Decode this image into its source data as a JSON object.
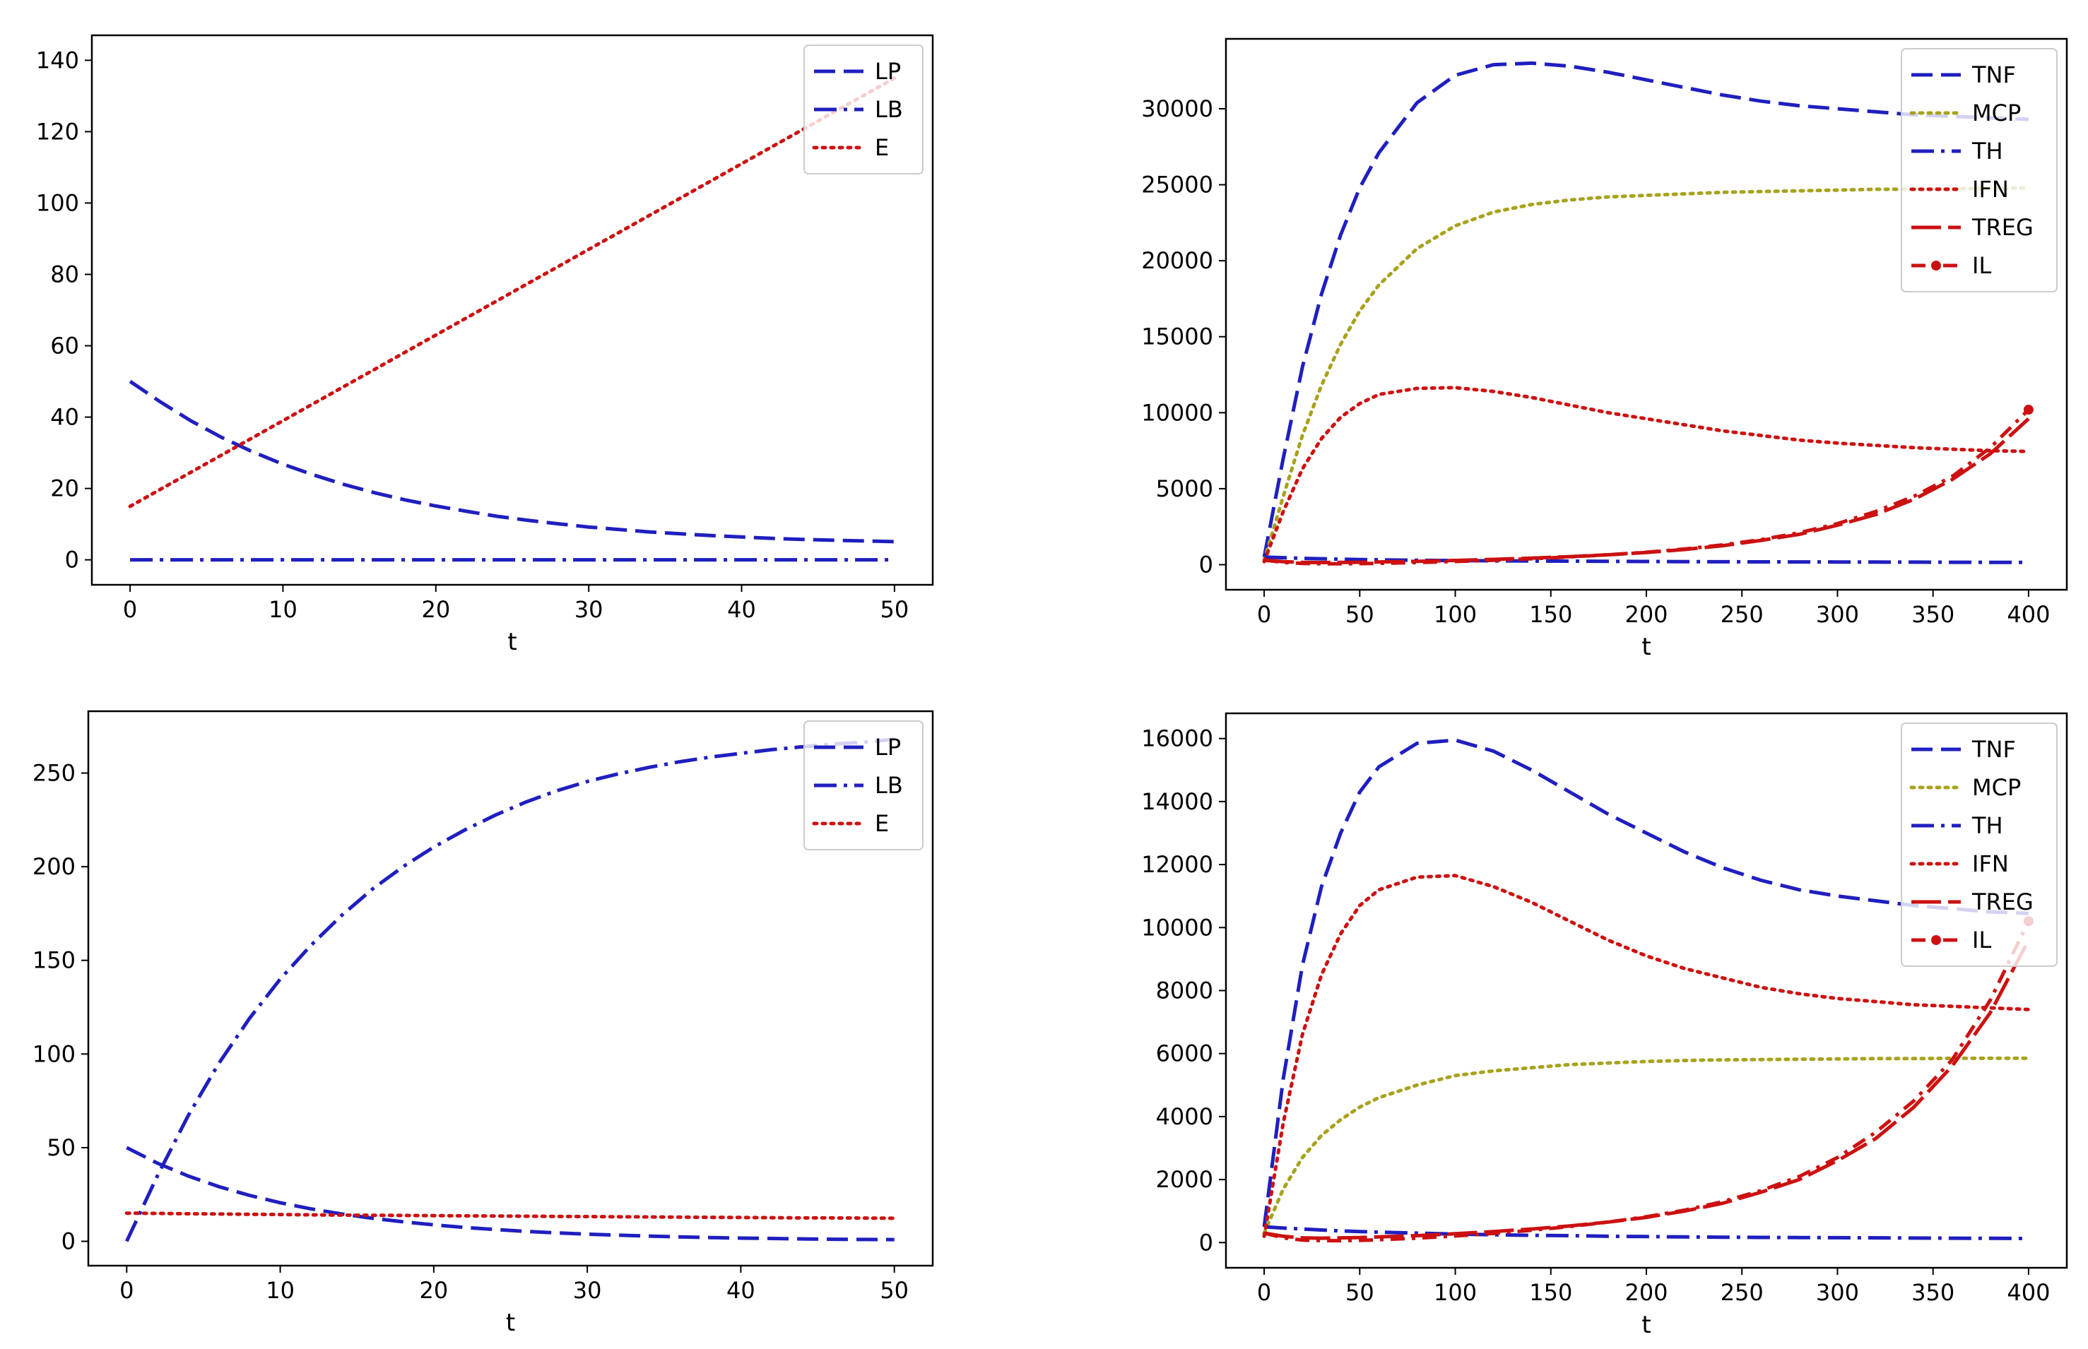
{
  "chart_data": [
    {
      "type": "line",
      "xlabel": "t",
      "ylabel": "",
      "xlim": [
        -2.5,
        52.5
      ],
      "ylim": [
        -7,
        147
      ],
      "xticks": [
        0,
        10,
        20,
        30,
        40,
        50
      ],
      "yticks": [
        0,
        20,
        40,
        60,
        80,
        100,
        120,
        140
      ],
      "x": [
        0,
        2,
        4,
        6,
        8,
        10,
        12,
        14,
        16,
        18,
        20,
        22,
        24,
        26,
        28,
        30,
        32,
        34,
        36,
        38,
        40,
        42,
        44,
        46,
        48,
        50
      ],
      "series": [
        {
          "name": "LP",
          "color": "#1f1fbf",
          "style": "dashed",
          "values": [
            50.0,
            44.2,
            38.9,
            34.3,
            30.3,
            26.8,
            23.8,
            21.1,
            18.8,
            16.8,
            15.1,
            13.6,
            12.2,
            11.1,
            10.1,
            9.2,
            8.5,
            7.8,
            7.3,
            6.8,
            6.4,
            6.0,
            5.7,
            5.5,
            5.3,
            5.1
          ]
        },
        {
          "name": "LB",
          "color": "#1f1fbf",
          "style": "dashdot",
          "values": [
            0,
            0,
            0,
            0,
            0,
            0,
            0,
            0,
            0,
            0,
            0,
            0,
            0,
            0,
            0,
            0,
            0,
            0,
            0,
            0,
            0,
            0,
            0,
            0,
            0,
            0
          ]
        },
        {
          "name": "E",
          "color": "#cc1111",
          "style": "dotted",
          "values": [
            15.0,
            19.8,
            24.6,
            29.4,
            34.2,
            39.0,
            43.8,
            48.6,
            53.4,
            58.2,
            63.0,
            67.8,
            72.6,
            77.4,
            82.2,
            87.0,
            91.8,
            96.6,
            101.4,
            106.2,
            111.0,
            115.8,
            120.6,
            125.4,
            130.2,
            135.0
          ]
        }
      ],
      "legend": {
        "position": "top-right",
        "entries": [
          "LP",
          "LB",
          "E"
        ]
      }
    },
    {
      "type": "line",
      "xlabel": "t",
      "ylabel": "",
      "xlim": [
        -20,
        420
      ],
      "ylim": [
        -1650,
        34600
      ],
      "xticks": [
        0,
        50,
        100,
        150,
        200,
        250,
        300,
        350,
        400
      ],
      "yticks": [
        0,
        5000,
        10000,
        15000,
        20000,
        25000,
        30000
      ],
      "x": [
        0,
        10,
        20,
        30,
        40,
        50,
        60,
        80,
        100,
        120,
        140,
        160,
        180,
        200,
        220,
        240,
        260,
        280,
        300,
        320,
        340,
        360,
        380,
        400
      ],
      "series": [
        {
          "name": "TNF",
          "color": "#1f1fbf",
          "style": "dashed",
          "values": [
            500,
            7000,
            13000,
            17800,
            21700,
            24800,
            27100,
            30400,
            32200,
            32900,
            33000,
            32800,
            32400,
            31900,
            31400,
            30900,
            30500,
            30200,
            30000,
            29800,
            29600,
            29500,
            29400,
            29300
          ]
        },
        {
          "name": "MCP",
          "color": "#a8a21c",
          "style": "dotted",
          "values": [
            300,
            4500,
            8500,
            11800,
            14500,
            16700,
            18400,
            20800,
            22300,
            23200,
            23700,
            24000,
            24200,
            24300,
            24400,
            24500,
            24550,
            24600,
            24650,
            24700,
            24700,
            24750,
            24750,
            24800
          ]
        },
        {
          "name": "TH",
          "color": "#1f1fbf",
          "style": "dashdot",
          "values": [
            500,
            460,
            420,
            390,
            360,
            340,
            320,
            290,
            270,
            250,
            240,
            230,
            220,
            210,
            200,
            190,
            185,
            180,
            175,
            170,
            165,
            160,
            155,
            150
          ]
        },
        {
          "name": "IFN",
          "color": "#cc1111",
          "style": "dotted",
          "values": [
            200,
            3500,
            6300,
            8300,
            9700,
            10600,
            11200,
            11600,
            11650,
            11400,
            11000,
            10500,
            10000,
            9600,
            9200,
            8800,
            8500,
            8200,
            8000,
            7850,
            7700,
            7600,
            7500,
            7450
          ]
        },
        {
          "name": "TREG",
          "color": "#cc1111",
          "style": "longdash",
          "values": [
            300,
            200,
            150,
            140,
            150,
            160,
            180,
            220,
            280,
            350,
            430,
            530,
            650,
            800,
            1000,
            1250,
            1600,
            2000,
            2600,
            3300,
            4300,
            5600,
            7300,
            9600
          ]
        },
        {
          "name": "IL",
          "color": "#cc1111",
          "style": "dashdot-marker",
          "values": [
            300,
            150,
            80,
            60,
            60,
            70,
            90,
            140,
            210,
            290,
            390,
            510,
            650,
            820,
            1030,
            1300,
            1650,
            2100,
            2700,
            3500,
            4500,
            5800,
            7700,
            10200
          ]
        }
      ],
      "legend": {
        "position": "top-right",
        "entries": [
          "TNF",
          "MCP",
          "TH",
          "IFN",
          "TREG",
          "IL"
        ]
      }
    },
    {
      "type": "line",
      "xlabel": "t",
      "ylabel": "",
      "xlim": [
        -2.5,
        52.5
      ],
      "ylim": [
        -13,
        283
      ],
      "xticks": [
        0,
        10,
        20,
        30,
        40,
        50
      ],
      "yticks": [
        0,
        50,
        100,
        150,
        200,
        250
      ],
      "x": [
        0,
        2,
        4,
        6,
        8,
        10,
        12,
        14,
        16,
        18,
        20,
        22,
        24,
        26,
        28,
        30,
        32,
        34,
        36,
        38,
        40,
        42,
        44,
        46,
        48,
        50
      ],
      "series": [
        {
          "name": "LP",
          "color": "#1f1fbf",
          "style": "dashed",
          "values": [
            50.0,
            41.7,
            34.9,
            29.2,
            24.5,
            20.6,
            17.3,
            14.6,
            12.3,
            10.4,
            8.8,
            7.4,
            6.3,
            5.3,
            4.5,
            3.8,
            3.3,
            2.8,
            2.4,
            2.0,
            1.7,
            1.5,
            1.3,
            1.1,
            1.0,
            0.9
          ]
        },
        {
          "name": "LB",
          "color": "#1f1fbf",
          "style": "dashdot",
          "values": [
            0,
            35.0,
            67.0,
            95.0,
            119.0,
            140.0,
            158.0,
            174.0,
            188.0,
            200.0,
            210.5,
            219.5,
            227.5,
            234.5,
            240.5,
            245.5,
            249.5,
            253.0,
            256.0,
            258.5,
            260.5,
            262.5,
            264.0,
            265.5,
            266.5,
            268.0
          ]
        },
        {
          "name": "E",
          "color": "#cc1111",
          "style": "dotted",
          "values": [
            15.0,
            14.9,
            14.7,
            14.6,
            14.4,
            14.3,
            14.1,
            14.0,
            13.9,
            13.8,
            13.7,
            13.6,
            13.5,
            13.4,
            13.3,
            13.2,
            13.1,
            13.0,
            12.9,
            12.8,
            12.7,
            12.6,
            12.5,
            12.5,
            12.4,
            12.3
          ]
        }
      ],
      "legend": {
        "position": "top-right",
        "entries": [
          "LP",
          "LB",
          "E"
        ]
      }
    },
    {
      "type": "line",
      "xlabel": "t",
      "ylabel": "",
      "xlim": [
        -20,
        420
      ],
      "ylim": [
        -800,
        16800
      ],
      "xticks": [
        0,
        50,
        100,
        150,
        200,
        250,
        300,
        350,
        400
      ],
      "yticks": [
        0,
        2000,
        4000,
        6000,
        8000,
        10000,
        12000,
        14000,
        16000
      ],
      "x": [
        0,
        10,
        20,
        30,
        40,
        50,
        60,
        80,
        100,
        120,
        140,
        160,
        180,
        200,
        220,
        240,
        260,
        280,
        300,
        320,
        340,
        360,
        380,
        400
      ],
      "series": [
        {
          "name": "TNF",
          "color": "#1f1fbf",
          "style": "dashed",
          "values": [
            500,
            5200,
            8800,
            11300,
            13000,
            14300,
            15100,
            15850,
            15950,
            15600,
            15000,
            14300,
            13600,
            13000,
            12400,
            11900,
            11500,
            11200,
            11000,
            10850,
            10700,
            10600,
            10500,
            10450
          ]
        },
        {
          "name": "MCP",
          "color": "#a8a21c",
          "style": "dotted",
          "values": [
            300,
            1700,
            2700,
            3400,
            3900,
            4300,
            4600,
            5000,
            5300,
            5450,
            5550,
            5650,
            5700,
            5750,
            5780,
            5800,
            5810,
            5820,
            5830,
            5840,
            5840,
            5850,
            5850,
            5850
          ]
        },
        {
          "name": "TH",
          "color": "#1f1fbf",
          "style": "dashdot",
          "values": [
            500,
            460,
            430,
            400,
            370,
            350,
            330,
            300,
            270,
            250,
            230,
            220,
            200,
            190,
            180,
            170,
            165,
            160,
            155,
            150,
            145,
            140,
            135,
            130
          ]
        },
        {
          "name": "IFN",
          "color": "#cc1111",
          "style": "dotted",
          "values": [
            200,
            3800,
            6600,
            8500,
            9800,
            10700,
            11200,
            11600,
            11650,
            11300,
            10800,
            10200,
            9600,
            9100,
            8700,
            8400,
            8100,
            7900,
            7750,
            7650,
            7550,
            7500,
            7450,
            7400
          ]
        },
        {
          "name": "TREG",
          "color": "#cc1111",
          "style": "longdash",
          "values": [
            300,
            200,
            150,
            140,
            150,
            160,
            180,
            220,
            280,
            350,
            430,
            530,
            650,
            800,
            1000,
            1250,
            1600,
            2000,
            2600,
            3300,
            4300,
            5600,
            7300,
            9600
          ]
        },
        {
          "name": "IL",
          "color": "#cc1111",
          "style": "dashdot-marker",
          "values": [
            300,
            150,
            80,
            60,
            60,
            70,
            90,
            140,
            210,
            290,
            390,
            510,
            650,
            820,
            1030,
            1300,
            1650,
            2100,
            2700,
            3500,
            4500,
            5800,
            7700,
            10200
          ]
        }
      ],
      "legend": {
        "position": "top-right",
        "entries": [
          "TNF",
          "MCP",
          "TH",
          "IFN",
          "TREG",
          "IL"
        ]
      }
    }
  ]
}
